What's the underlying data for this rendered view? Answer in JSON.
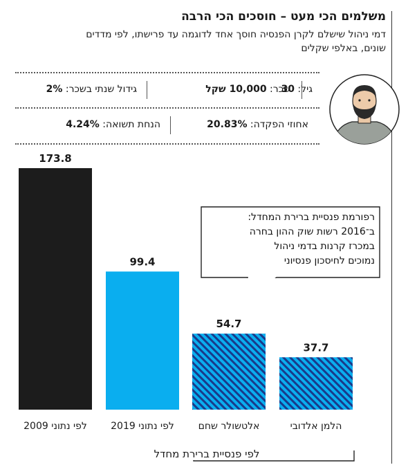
{
  "header": {
    "title": "משלמים הכי מעט – חוסכים הכי הרבה",
    "subtitle": "דמי ניהול שישלם לקרן הפנסיה חוסך אחד לדוגמה עד פרישתו, לפי מדדים שונים, באלפי שקלים"
  },
  "profile": {
    "age_label": "גיל:",
    "age_value": "30",
    "salary_label": "שכר:",
    "salary_value": "10,000 שקל",
    "growth_label": "גידול שנתי בשכר:",
    "growth_value": "2%",
    "deposit_label": "אחוזי הפקדה:",
    "deposit_value": "20.83%",
    "return_label": "הנחת תשואה:",
    "return_value": "4.24%"
  },
  "callout": {
    "line1": "רפורמת פנסיית ברירת המחדל:",
    "line2": "ב־2016 רשות שוק ההון בחרה",
    "line3": "במכרז קרנות בדמי ניהול",
    "line4": "נמוכים לחיסכון פנסיוני"
  },
  "bracket_label": "לפי פנסיית ברירת מחדל",
  "colors": {
    "bar_2009": "#1c1c1c",
    "bar_2019": "#0aaeef",
    "bar_default_fund": "#0aaeef",
    "hatch": "#1a3a8a"
  },
  "chart_data": {
    "type": "bar",
    "categories": [
      "לפי נתוני 2009",
      "לפי נתוני 2019",
      "אלטשולר שחם",
      "הלמן אלדובי"
    ],
    "values": [
      173.8,
      99.4,
      54.7,
      37.7
    ],
    "value_labels": [
      "173.8",
      "99.4",
      "54.7",
      "37.7"
    ],
    "styles": [
      "solid-black",
      "solid-blue",
      "hatched-blue",
      "hatched-blue"
    ],
    "ylim": [
      0,
      173.8
    ]
  }
}
